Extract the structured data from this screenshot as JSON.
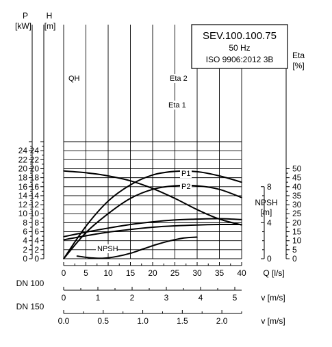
{
  "chart_data": {
    "type": "line",
    "title": "SEV.100.100.75",
    "subtitle_lines": [
      "50 Hz",
      "ISO 9906:2012 3B"
    ],
    "x_axis": {
      "label": "Q [l/s]",
      "range": [
        0,
        40
      ],
      "ticks": [
        "0",
        "5",
        "10",
        "15",
        "20",
        "25",
        "30",
        "35",
        "40"
      ]
    },
    "left_axes": {
      "p": {
        "name": "P",
        "unit": "[kW]",
        "ticks": [
          "0",
          "2",
          "4",
          "6",
          "8",
          "10",
          "12",
          "14",
          "16",
          "18",
          "20",
          "22",
          "24"
        ]
      },
      "h": {
        "name": "H",
        "unit": "[m]",
        "range": [
          0,
          24
        ],
        "ticks": [
          "0",
          "2",
          "4",
          "6",
          "8",
          "10",
          "12",
          "14",
          "16",
          "18",
          "20",
          "22",
          "24"
        ]
      }
    },
    "right_axes": {
      "eta": {
        "name": "Eta",
        "unit": "[%]",
        "range": [
          0,
          50
        ],
        "ticks": [
          "0",
          "5",
          "10",
          "15",
          "20",
          "25",
          "30",
          "35",
          "40",
          "45",
          "50"
        ]
      },
      "npsh": {
        "name": "NPSH",
        "unit": "[m]",
        "range": [
          0,
          8
        ],
        "ticks": [
          "0",
          "4",
          "8"
        ]
      }
    },
    "velocity_axes": [
      {
        "name": "DN 100",
        "unit": "v [m/s]",
        "ticks": [
          "0",
          "1",
          "2",
          "3",
          "4",
          "5"
        ],
        "step": 1,
        "max_value": 5.2
      },
      {
        "name": "DN 150",
        "unit": "v [m/s]",
        "ticks": [
          "0.0",
          "0.5",
          "1.0",
          "1.5",
          "2.0"
        ],
        "step": 0.5,
        "max_value": 2.25
      }
    ],
    "series": [
      {
        "name": "QH",
        "axis": "h",
        "x": [
          0,
          5,
          10,
          15,
          20,
          25,
          30,
          35,
          40
        ],
        "y": [
          19.5,
          19.1,
          18.4,
          17.3,
          15.6,
          13.4,
          10.9,
          8.8,
          7.5
        ]
      },
      {
        "name": "Eta 2",
        "axis": "eta",
        "x": [
          0,
          5,
          10,
          15,
          20,
          25,
          30,
          35,
          40
        ],
        "y": [
          0,
          18,
          32,
          41,
          46.5,
          48.5,
          48.3,
          46,
          42.5
        ]
      },
      {
        "name": "Eta 1",
        "axis": "eta",
        "x": [
          0,
          5,
          10,
          15,
          20,
          25,
          30,
          35,
          40
        ],
        "y": [
          0,
          14.5,
          25,
          33.5,
          38.5,
          40.5,
          40.5,
          38.5,
          34
        ]
      },
      {
        "name": "P1",
        "axis": "p",
        "x": [
          0,
          5,
          10,
          15,
          20,
          25,
          30,
          35,
          40
        ],
        "y": [
          4.9,
          5.9,
          6.8,
          7.6,
          8.2,
          8.6,
          8.8,
          8.9,
          8.7
        ]
      },
      {
        "name": "P2",
        "axis": "p",
        "x": [
          0,
          5,
          10,
          15,
          20,
          25,
          30,
          35,
          40
        ],
        "y": [
          4.2,
          5.1,
          5.9,
          6.5,
          7.0,
          7.3,
          7.5,
          7.6,
          7.6
        ]
      },
      {
        "name": "NPSH",
        "axis": "npsh",
        "x": [
          3,
          6,
          9,
          12,
          15,
          18,
          21,
          24,
          27,
          30
        ],
        "y": [
          0.3,
          0.1,
          0.05,
          0.25,
          0.6,
          1.1,
          1.6,
          2.0,
          2.3,
          2.4
        ]
      }
    ]
  }
}
